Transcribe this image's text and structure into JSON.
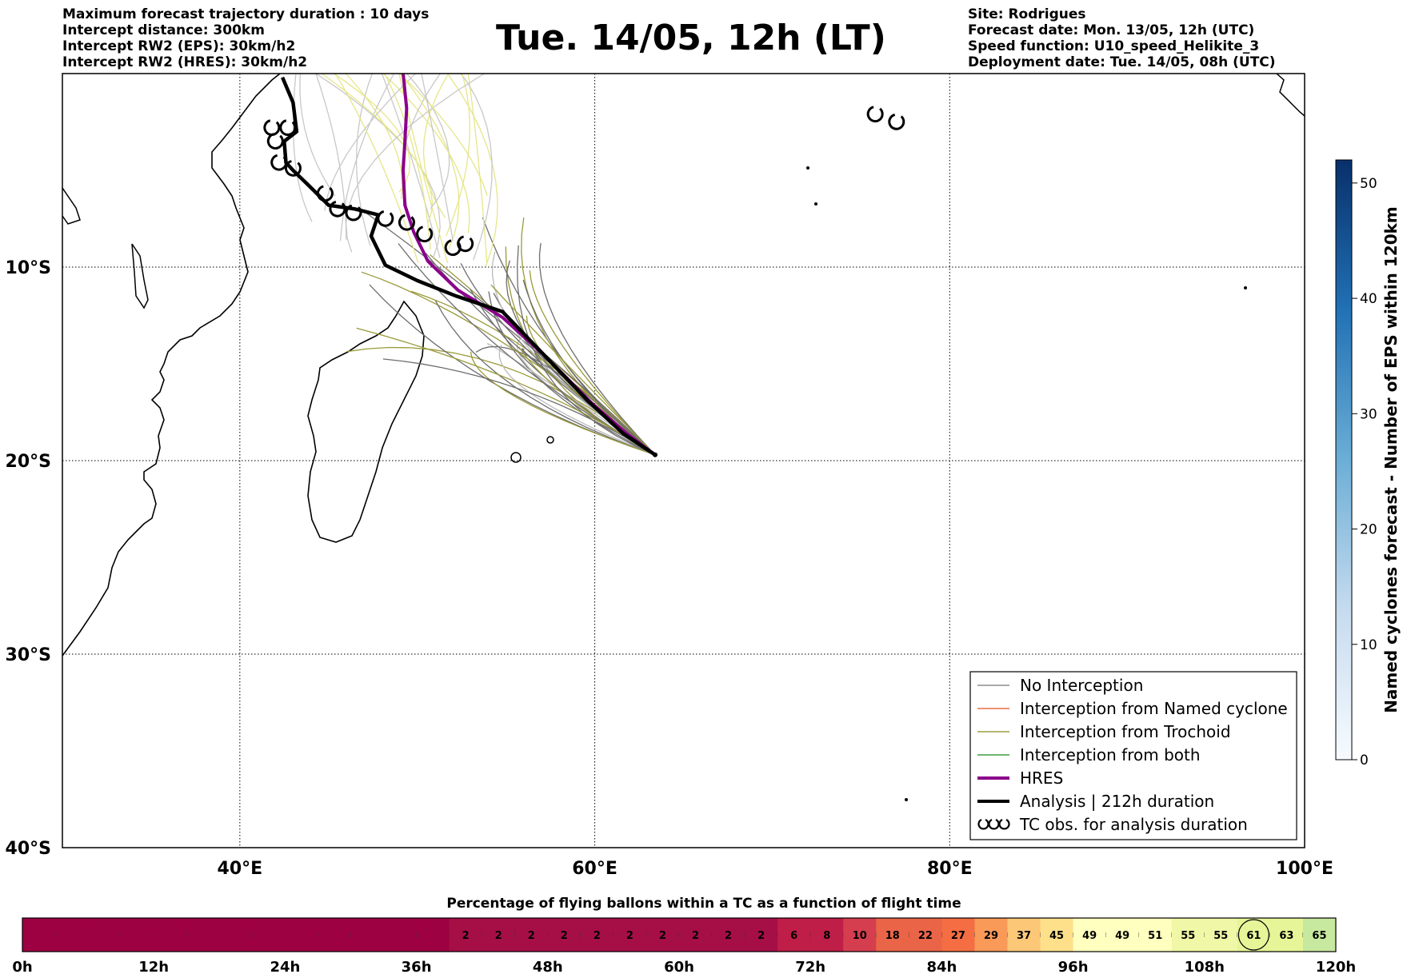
{
  "header_left": [
    "Maximum forecast trajectory duration : 10 days",
    "Intercept distance: 300km",
    "Intercept RW2 (EPS):  30km/h2",
    "Intercept RW2 (HRES): 30km/h2"
  ],
  "header_right": [
    "Site: Rodrigues",
    "Forecast date: Mon. 13/05, 12h (UTC)",
    "Speed function: U10_speed_Helikite_3",
    "Deployment date: Tue. 14/05, 08h (UTC)"
  ],
  "title": "Tue. 14/05, 12h (LT)",
  "chart_data": [
    {
      "type": "line",
      "name": "trajectory-map",
      "x_axis": {
        "ticks": [
          40,
          60,
          80,
          100
        ],
        "tick_labels": [
          "40°E",
          "60°E",
          "80°E",
          "100°E"
        ],
        "range": [
          30,
          100
        ]
      },
      "y_axis": {
        "ticks": [
          -10,
          -20,
          -30,
          -40
        ],
        "tick_labels": [
          "10°S",
          "20°S",
          "30°S",
          "40°S"
        ],
        "range": [
          -40,
          0
        ]
      },
      "grid": true,
      "launch_site": {
        "lon": 63.4,
        "lat": -19.7
      },
      "series": [
        {
          "name": "HRES",
          "color": "#8b008b",
          "lon": [
            63.4,
            61.8,
            59.8,
            57.2,
            54.8,
            52.3,
            50.6,
            49.8,
            49.3,
            49.2,
            49.3,
            49.4,
            49.2
          ],
          "lat": [
            -19.7,
            -18.6,
            -17.0,
            -14.6,
            -12.6,
            -11.2,
            -9.7,
            -8.2,
            -6.8,
            -5.0,
            -3.5,
            -1.8,
            0.0
          ]
        },
        {
          "name": "Analysis | 212h duration",
          "color": "#000000",
          "lon": [
            63.4,
            61.6,
            59.6,
            57.2,
            54.8,
            52.2,
            50.0,
            48.2,
            47.4,
            47.8,
            46.5,
            45.0,
            43.9,
            43.0,
            42.6,
            42.5,
            43.2,
            43.0,
            42.4
          ],
          "lat": [
            -19.7,
            -18.6,
            -16.9,
            -14.6,
            -12.3,
            -11.5,
            -10.7,
            -9.9,
            -8.4,
            -7.3,
            -7.0,
            -6.8,
            -5.8,
            -5.0,
            -4.6,
            -3.5,
            -3.0,
            -1.5,
            -0.2
          ]
        }
      ],
      "tc_obs": [
        {
          "lon": 41.8,
          "lat": -2.8
        },
        {
          "lon": 42.7,
          "lat": -2.8
        },
        {
          "lon": 42.0,
          "lat": -3.5
        },
        {
          "lon": 42.2,
          "lat": -4.6
        },
        {
          "lon": 43.0,
          "lat": -4.9
        },
        {
          "lon": 44.8,
          "lat": -6.2
        },
        {
          "lon": 45.5,
          "lat": -7.0
        },
        {
          "lon": 46.4,
          "lat": -7.2
        },
        {
          "lon": 48.2,
          "lat": -7.5
        },
        {
          "lon": 49.4,
          "lat": -7.7
        },
        {
          "lon": 50.4,
          "lat": -8.3
        },
        {
          "lon": 52.0,
          "lat": -9.0
        },
        {
          "lon": 52.7,
          "lat": -8.8
        },
        {
          "lon": 75.8,
          "lat": -2.1
        },
        {
          "lon": 77.0,
          "lat": -2.5
        }
      ],
      "legend": {
        "placement": "lower right",
        "entries": [
          {
            "label": "No Interception",
            "color": "#777777"
          },
          {
            "label": "Interception from Named cyclone",
            "color": "#e8541c"
          },
          {
            "label": "Interception from Trochoid",
            "color": "#8b8b1a"
          },
          {
            "label": "Interception from both",
            "color": "#1a8b1a"
          },
          {
            "label": "HRES",
            "color": "#8b008b"
          },
          {
            "label": "Analysis | 212h duration",
            "color": "#000000"
          },
          {
            "label": "TC obs. for analysis duration",
            "color": "#000000"
          }
        ]
      },
      "colorbar": {
        "label": "Named cyclones forecast - Number of EPS within 120km",
        "ticks": [
          0,
          10,
          20,
          30,
          40,
          50
        ],
        "range": [
          0,
          52
        ],
        "colors": [
          "#f7fbff",
          "#08306b"
        ]
      }
    },
    {
      "type": "heatmap",
      "name": "flight-time-bar",
      "title": "Percentage of flying ballons within a TC as a function of flight time",
      "x_ticks": [
        "0h",
        "12h",
        "24h",
        "36h",
        "48h",
        "60h",
        "72h",
        "84h",
        "96h",
        "108h",
        "120h"
      ],
      "hours_per_cell": 3,
      "values": [
        0,
        0,
        0,
        0,
        0,
        0,
        0,
        0,
        0,
        0,
        0,
        0,
        0,
        2,
        2,
        2,
        2,
        2,
        2,
        2,
        2,
        2,
        2,
        6,
        8,
        10,
        18,
        22,
        27,
        29,
        37,
        45,
        49,
        49,
        51,
        55,
        55,
        61,
        63,
        65
      ],
      "highlighted_index": 37
    }
  ]
}
